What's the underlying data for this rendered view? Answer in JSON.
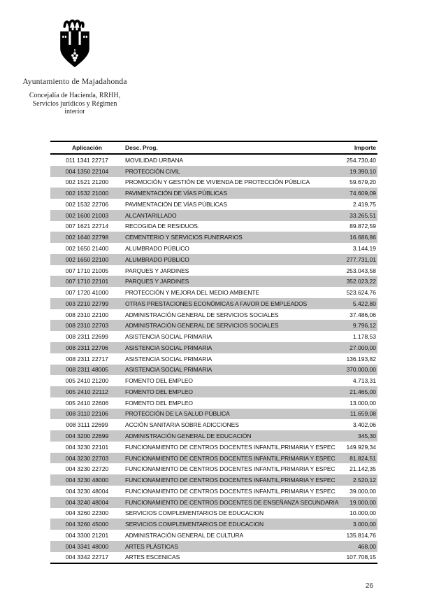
{
  "header": {
    "org_name": "Ayuntamiento de Majadahonda",
    "department_lines": [
      "Concejalía de Hacienda, RRHH,",
      "Servicios jurídicos y Régimen",
      "interior"
    ],
    "logo": "majadahonda-coat-of-arms"
  },
  "table": {
    "columns": [
      {
        "key": "aplicacion",
        "label": "Aplicación"
      },
      {
        "key": "desc",
        "label": "Desc. Prog."
      },
      {
        "key": "importe",
        "label": "Importe"
      }
    ],
    "stripe_color": "#c7c7c7",
    "rows": [
      {
        "aplicacion": "011 1341 22717",
        "desc": "MOVILIDAD URBANA",
        "importe": "254.730,40"
      },
      {
        "aplicacion": "004 1350 22104",
        "desc": "PROTECCIÓN CIVIL",
        "importe": "19.390,10"
      },
      {
        "aplicacion": "002 1521 21200",
        "desc": "PROMOCIÓN Y GESTIÓN DE VIVIENDA DE PROTECCIÓN PÚBLICA",
        "importe": "59.679,20"
      },
      {
        "aplicacion": "002 1532 21000",
        "desc": "PAVIMENTACIÓN DE VÍAS PÚBLICAS",
        "importe": "74.609,09"
      },
      {
        "aplicacion": "002 1532 22706",
        "desc": "PAVIMENTACIÓN DE VÍAS PÚBLICAS",
        "importe": "2.419,75"
      },
      {
        "aplicacion": "002 1600 21003",
        "desc": "ALCANTARILLADO",
        "importe": "33.265,51"
      },
      {
        "aplicacion": "007 1621 22714",
        "desc": "RECOGIDA DE RESIDUOS.",
        "importe": "89.872,59"
      },
      {
        "aplicacion": "002 1640 22798",
        "desc": "CEMENTERIO Y SERVICIOS FUNERARIOS",
        "importe": "16.686,86"
      },
      {
        "aplicacion": "002 1650 21400",
        "desc": "ALUMBRADO PÚBLICO",
        "importe": "3.144,19"
      },
      {
        "aplicacion": "002 1650 22100",
        "desc": "ALUMBRADO PÚBLICO",
        "importe": "277.731,01"
      },
      {
        "aplicacion": "007 1710 21005",
        "desc": "PARQUES Y JARDINES",
        "importe": "253.043,58"
      },
      {
        "aplicacion": "007 1710 22101",
        "desc": "PARQUES Y JARDINES",
        "importe": "352.023,22"
      },
      {
        "aplicacion": "007 1720 41000",
        "desc": "PROTECCIÓN Y MEJORA DEL MEDIO AMBIENTE",
        "importe": "523.624,76"
      },
      {
        "aplicacion": "003 2210 22799",
        "desc": "OTRAS PRESTACIONES ECONÓMICAS A FAVOR DE EMPLEADOS",
        "importe": "5.422,80"
      },
      {
        "aplicacion": "008 2310 22100",
        "desc": "ADMINISTRACIÓN GENERAL DE SERVICIOS SOCIALES",
        "importe": "37.486,06"
      },
      {
        "aplicacion": "008 2310 22703",
        "desc": "ADMINISTRACIÓN GENERAL DE SERVICIOS SOCIALES",
        "importe": "9.796,12"
      },
      {
        "aplicacion": "008 2311 22699",
        "desc": "ASISTENCIA SOCIAL PRIMARIA",
        "importe": "1.178,53"
      },
      {
        "aplicacion": "008 2311 22706",
        "desc": "ASISTENCIA SOCIAL PRIMARIA",
        "importe": "27.000,00"
      },
      {
        "aplicacion": "008 2311 22717",
        "desc": "ASISTENCIA SOCIAL PRIMARIA",
        "importe": "136.193,82"
      },
      {
        "aplicacion": "008 2311 48005",
        "desc": "ASISTENCIA SOCIAL PRIMARIA",
        "importe": "370.000,00"
      },
      {
        "aplicacion": "005 2410 21200",
        "desc": "FOMENTO DEL EMPLEO",
        "importe": "4.713,31"
      },
      {
        "aplicacion": "005 2410 22112",
        "desc": "FOMENTO DEL EMPLEO",
        "importe": "21.465,00"
      },
      {
        "aplicacion": "005 2410 22606",
        "desc": "FOMENTO DEL EMPLEO",
        "importe": "13.000,00"
      },
      {
        "aplicacion": "008 3110 22106",
        "desc": "PROTECCIÓN DE LA SALUD PÚBLICA",
        "importe": "11.659,08"
      },
      {
        "aplicacion": "008 3111 22699",
        "desc": "ACCIÓN SANITARIA SOBRE ADICCIONES",
        "importe": "3.402,06"
      },
      {
        "aplicacion": "004 3200 22699",
        "desc": "ADMINISTRACIÓN GENERAL DE EDUCACIÓN",
        "importe": "345,30"
      },
      {
        "aplicacion": "004 3230 22101",
        "desc": "FUNCIONAMIENTO DE CENTROS DOCENTES INFANTIL,PRIMARIA Y ESPEC",
        "importe": "149.929,34"
      },
      {
        "aplicacion": "004 3230 22703",
        "desc": "FUNCIONAMIENTO DE CENTROS DOCENTES INFANTIL,PRIMARIA Y ESPEC",
        "importe": "81.824,51"
      },
      {
        "aplicacion": "004 3230 22720",
        "desc": "FUNCIONAMIENTO DE CENTROS DOCENTES INFANTIL,PRIMARIA Y ESPEC",
        "importe": "21.142,35"
      },
      {
        "aplicacion": "004 3230 48000",
        "desc": "FUNCIONAMIENTO DE CENTROS DOCENTES INFANTIL,PRIMARIA Y ESPEC",
        "importe": "2.520,12"
      },
      {
        "aplicacion": "004 3230 48004",
        "desc": "FUNCIONAMIENTO DE CENTROS DOCENTES INFANTIL,PRIMARIA Y ESPEC",
        "importe": "39.000,00"
      },
      {
        "aplicacion": "004 3240 48004",
        "desc": "FUNCIONAMIENTO DE CENTROS DOCENTES DE ENSEÑANZA SECUNDARIA",
        "importe": "19.000,00"
      },
      {
        "aplicacion": "004 3260 22300",
        "desc": "SERVICIOS COMPLEMENTARIOS DE EDUCACION",
        "importe": "10.000,00"
      },
      {
        "aplicacion": "004 3260 45000",
        "desc": "SERVICIOS COMPLEMENTARIOS DE EDUCACION",
        "importe": "3.000,00"
      },
      {
        "aplicacion": "004 3300 21201",
        "desc": "ADMINISTRACIÓN GENERAL DE CULTURA",
        "importe": "135.814,76"
      },
      {
        "aplicacion": "004 3341 48000",
        "desc": "ARTES PLÁSTICAS",
        "importe": "468,00"
      },
      {
        "aplicacion": "004 3342 22717",
        "desc": "ARTES ESCENICAS",
        "importe": "107.708,15"
      }
    ]
  },
  "footer": {
    "page_number": "26"
  }
}
